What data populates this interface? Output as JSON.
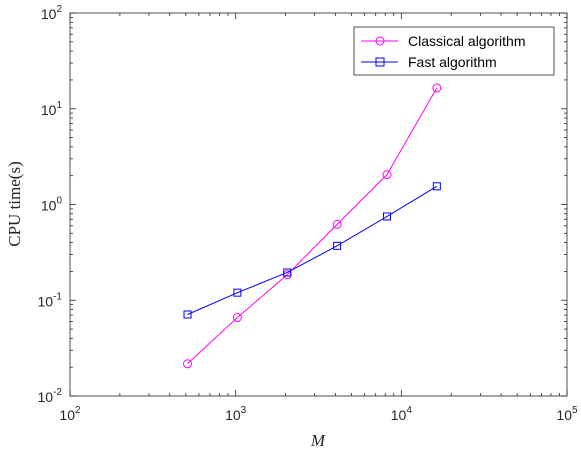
{
  "chart_data": {
    "type": "line",
    "xscale": "log",
    "yscale": "log",
    "xlim": [
      100,
      100000
    ],
    "ylim": [
      0.01,
      100
    ],
    "xlabel": "M",
    "ylabel": "CPU time(s)",
    "grid": false,
    "legend_position": "top-right",
    "xticks": [
      {
        "base": "10",
        "exp": "2",
        "value": 100
      },
      {
        "base": "10",
        "exp": "3",
        "value": 1000
      },
      {
        "base": "10",
        "exp": "4",
        "value": 10000
      },
      {
        "base": "10",
        "exp": "5",
        "value": 100000
      }
    ],
    "yticks": [
      {
        "base": "10",
        "exp": "-2",
        "value": 0.01
      },
      {
        "base": "10",
        "exp": "-1",
        "value": 0.1
      },
      {
        "base": "10",
        "exp": "0",
        "value": 1
      },
      {
        "base": "10",
        "exp": "1",
        "value": 10
      },
      {
        "base": "10",
        "exp": "2",
        "value": 100
      }
    ],
    "x": [
      512,
      1024,
      2048,
      4096,
      8192,
      16384
    ],
    "series": [
      {
        "name": "Classical algorithm",
        "color": "#ff00ff",
        "marker": "circle",
        "values": [
          0.0217,
          0.066,
          0.185,
          0.62,
          2.05,
          16.5
        ]
      },
      {
        "name": "Fast algorithm",
        "color": "#0000ff",
        "marker": "square",
        "values": [
          0.071,
          0.12,
          0.195,
          0.37,
          0.75,
          1.55
        ]
      }
    ]
  }
}
